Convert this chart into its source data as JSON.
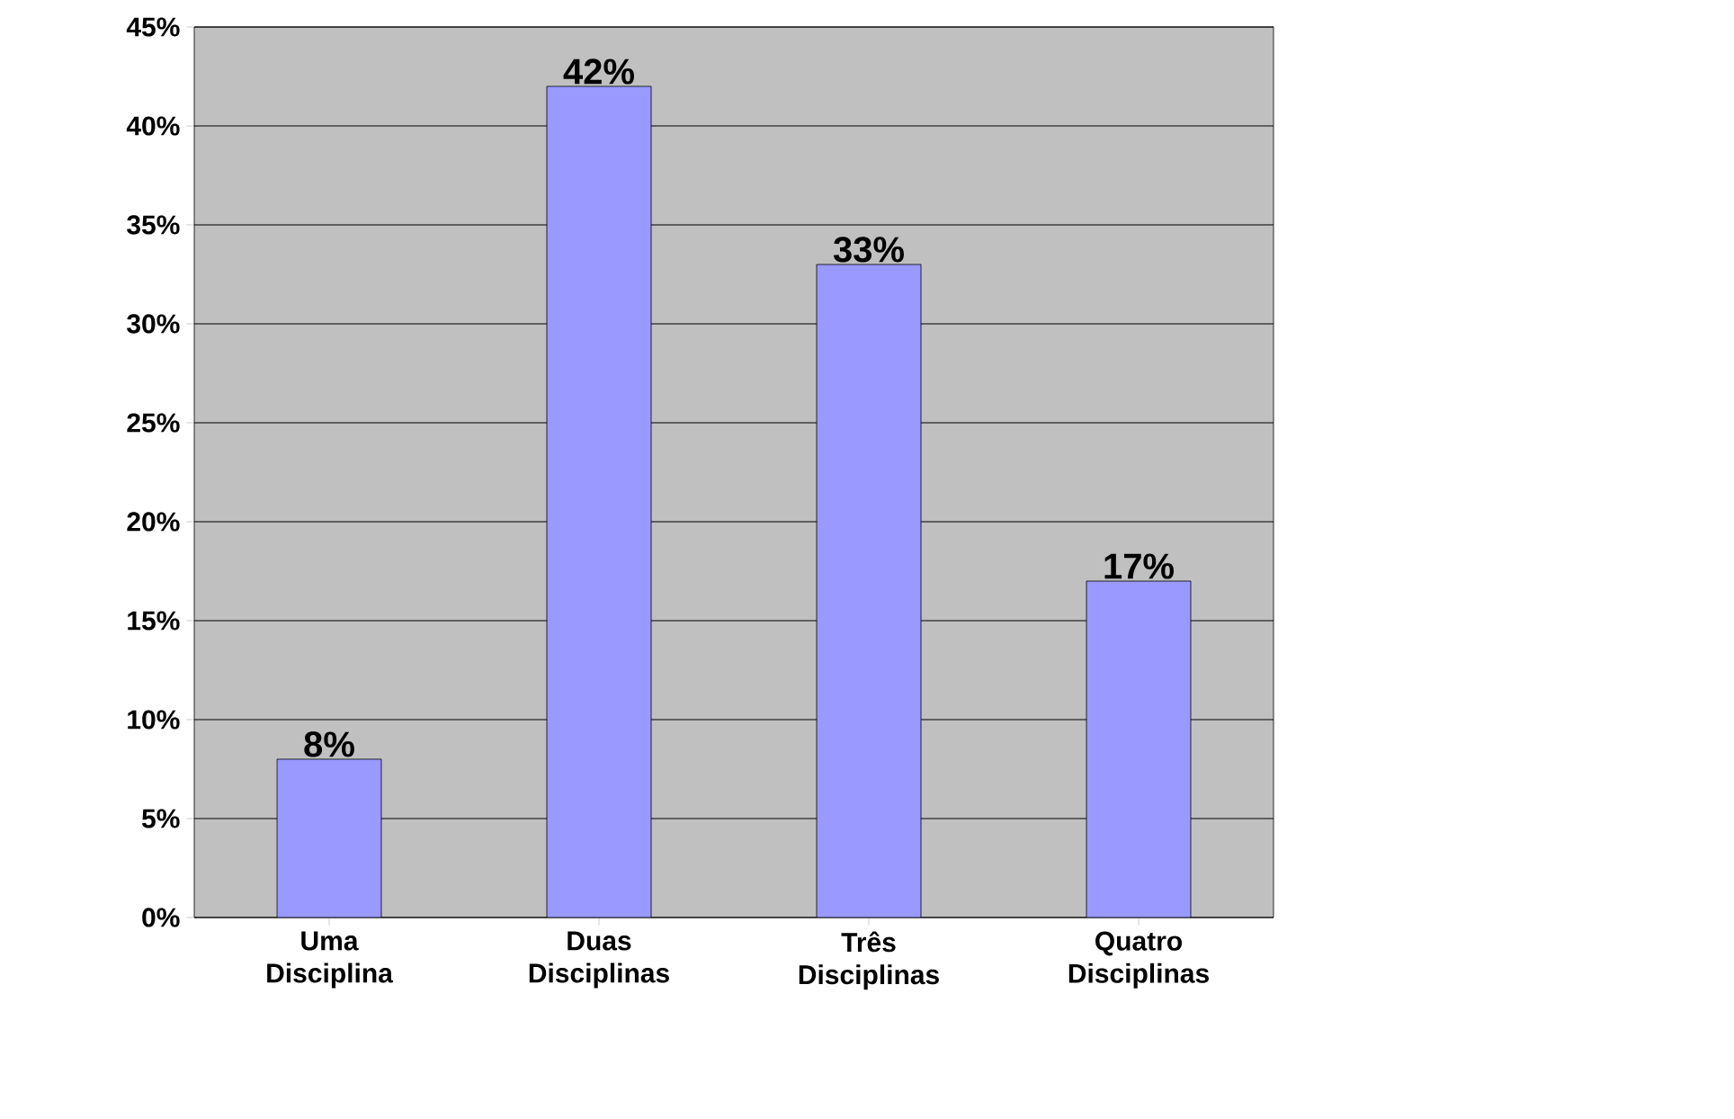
{
  "chart_data": {
    "type": "bar",
    "categories": [
      "Uma Disciplina",
      "Duas Disciplinas",
      "Três Disciplinas",
      "Quatro Disciplinas"
    ],
    "values": [
      8,
      42,
      33,
      17
    ],
    "color": "#9999ff",
    "value_labels": [
      "8%",
      "42%",
      "33%",
      "17%"
    ],
    "ylim": [
      0,
      45
    ],
    "yticks": [
      {
        "value": 0,
        "label": "0%"
      },
      {
        "value": 5,
        "label": "5%"
      },
      {
        "value": 10,
        "label": "10%"
      },
      {
        "value": 15,
        "label": "15%"
      },
      {
        "value": 20,
        "label": "20%"
      },
      {
        "value": 25,
        "label": "25%"
      },
      {
        "value": 30,
        "label": "30%"
      },
      {
        "value": 35,
        "label": "35%"
      },
      {
        "value": 40,
        "label": "40%"
      },
      {
        "value": 45,
        "label": "45%"
      }
    ],
    "grid": "y"
  }
}
